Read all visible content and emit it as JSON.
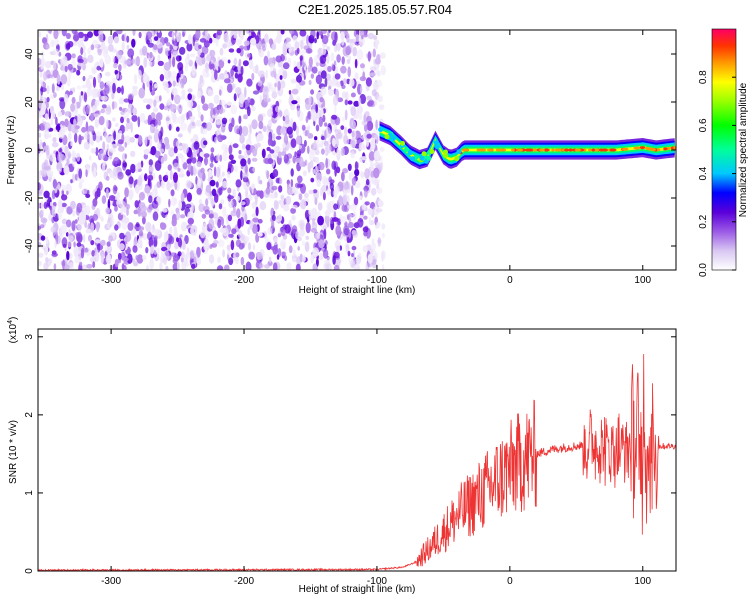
{
  "title": "C2E1.2025.185.05.57.R04",
  "chart_data": [
    {
      "type": "heatmap",
      "xlabel": "Height of straight line (km)",
      "ylabel": "Frequency (Hz)",
      "xlim": [
        -355,
        125
      ],
      "ylim": [
        -50,
        50
      ],
      "xticks": [
        -300,
        -200,
        -100,
        0,
        100
      ],
      "yticks": [
        -40,
        -20,
        0,
        20,
        40
      ],
      "noise_region_x": [
        -355,
        -95
      ],
      "signal_track": {
        "x": [
          -98,
          -90,
          -82,
          -75,
          -68,
          -62,
          -56,
          -50,
          -45,
          -40,
          -35,
          -30,
          -20,
          0,
          20,
          40,
          60,
          80,
          100,
          110,
          125
        ],
        "y": [
          8,
          6,
          2,
          -2,
          -4,
          -3,
          4,
          -2,
          -4,
          -3,
          0,
          0,
          0,
          0,
          0,
          0,
          0,
          0,
          1,
          0,
          1
        ]
      },
      "colorbar": {
        "label": "Normalized spectral amplitude",
        "ticks": [
          0.0,
          0.2,
          0.4,
          0.6,
          0.8
        ],
        "range": [
          0,
          1
        ]
      }
    },
    {
      "type": "line",
      "xlabel": "Height of straight line (km)",
      "ylabel": "SNR (10 * v/v)",
      "yscale_note": "(x10",
      "yscale_exp": "4",
      "yscale_close": ")",
      "xlim": [
        -355,
        125
      ],
      "ylim": [
        0,
        3.1
      ],
      "xticks": [
        -300,
        -200,
        -100,
        0,
        100
      ],
      "yticks": [
        0,
        1,
        2,
        3
      ],
      "color": "#ee3333",
      "envelope": {
        "x": [
          -355,
          -100,
          -80,
          -70,
          -60,
          -50,
          -40,
          -30,
          -20,
          -10,
          0,
          10,
          20,
          30,
          40,
          50,
          60,
          70,
          80,
          90,
          100,
          105,
          110,
          125
        ],
        "y": [
          0.01,
          0.02,
          0.05,
          0.12,
          0.3,
          0.5,
          0.7,
          0.85,
          1.0,
          1.15,
          1.3,
          1.42,
          1.5,
          1.55,
          1.58,
          1.6,
          1.62,
          1.6,
          1.58,
          1.58,
          1.6,
          1.55,
          1.6,
          1.6
        ]
      }
    }
  ]
}
